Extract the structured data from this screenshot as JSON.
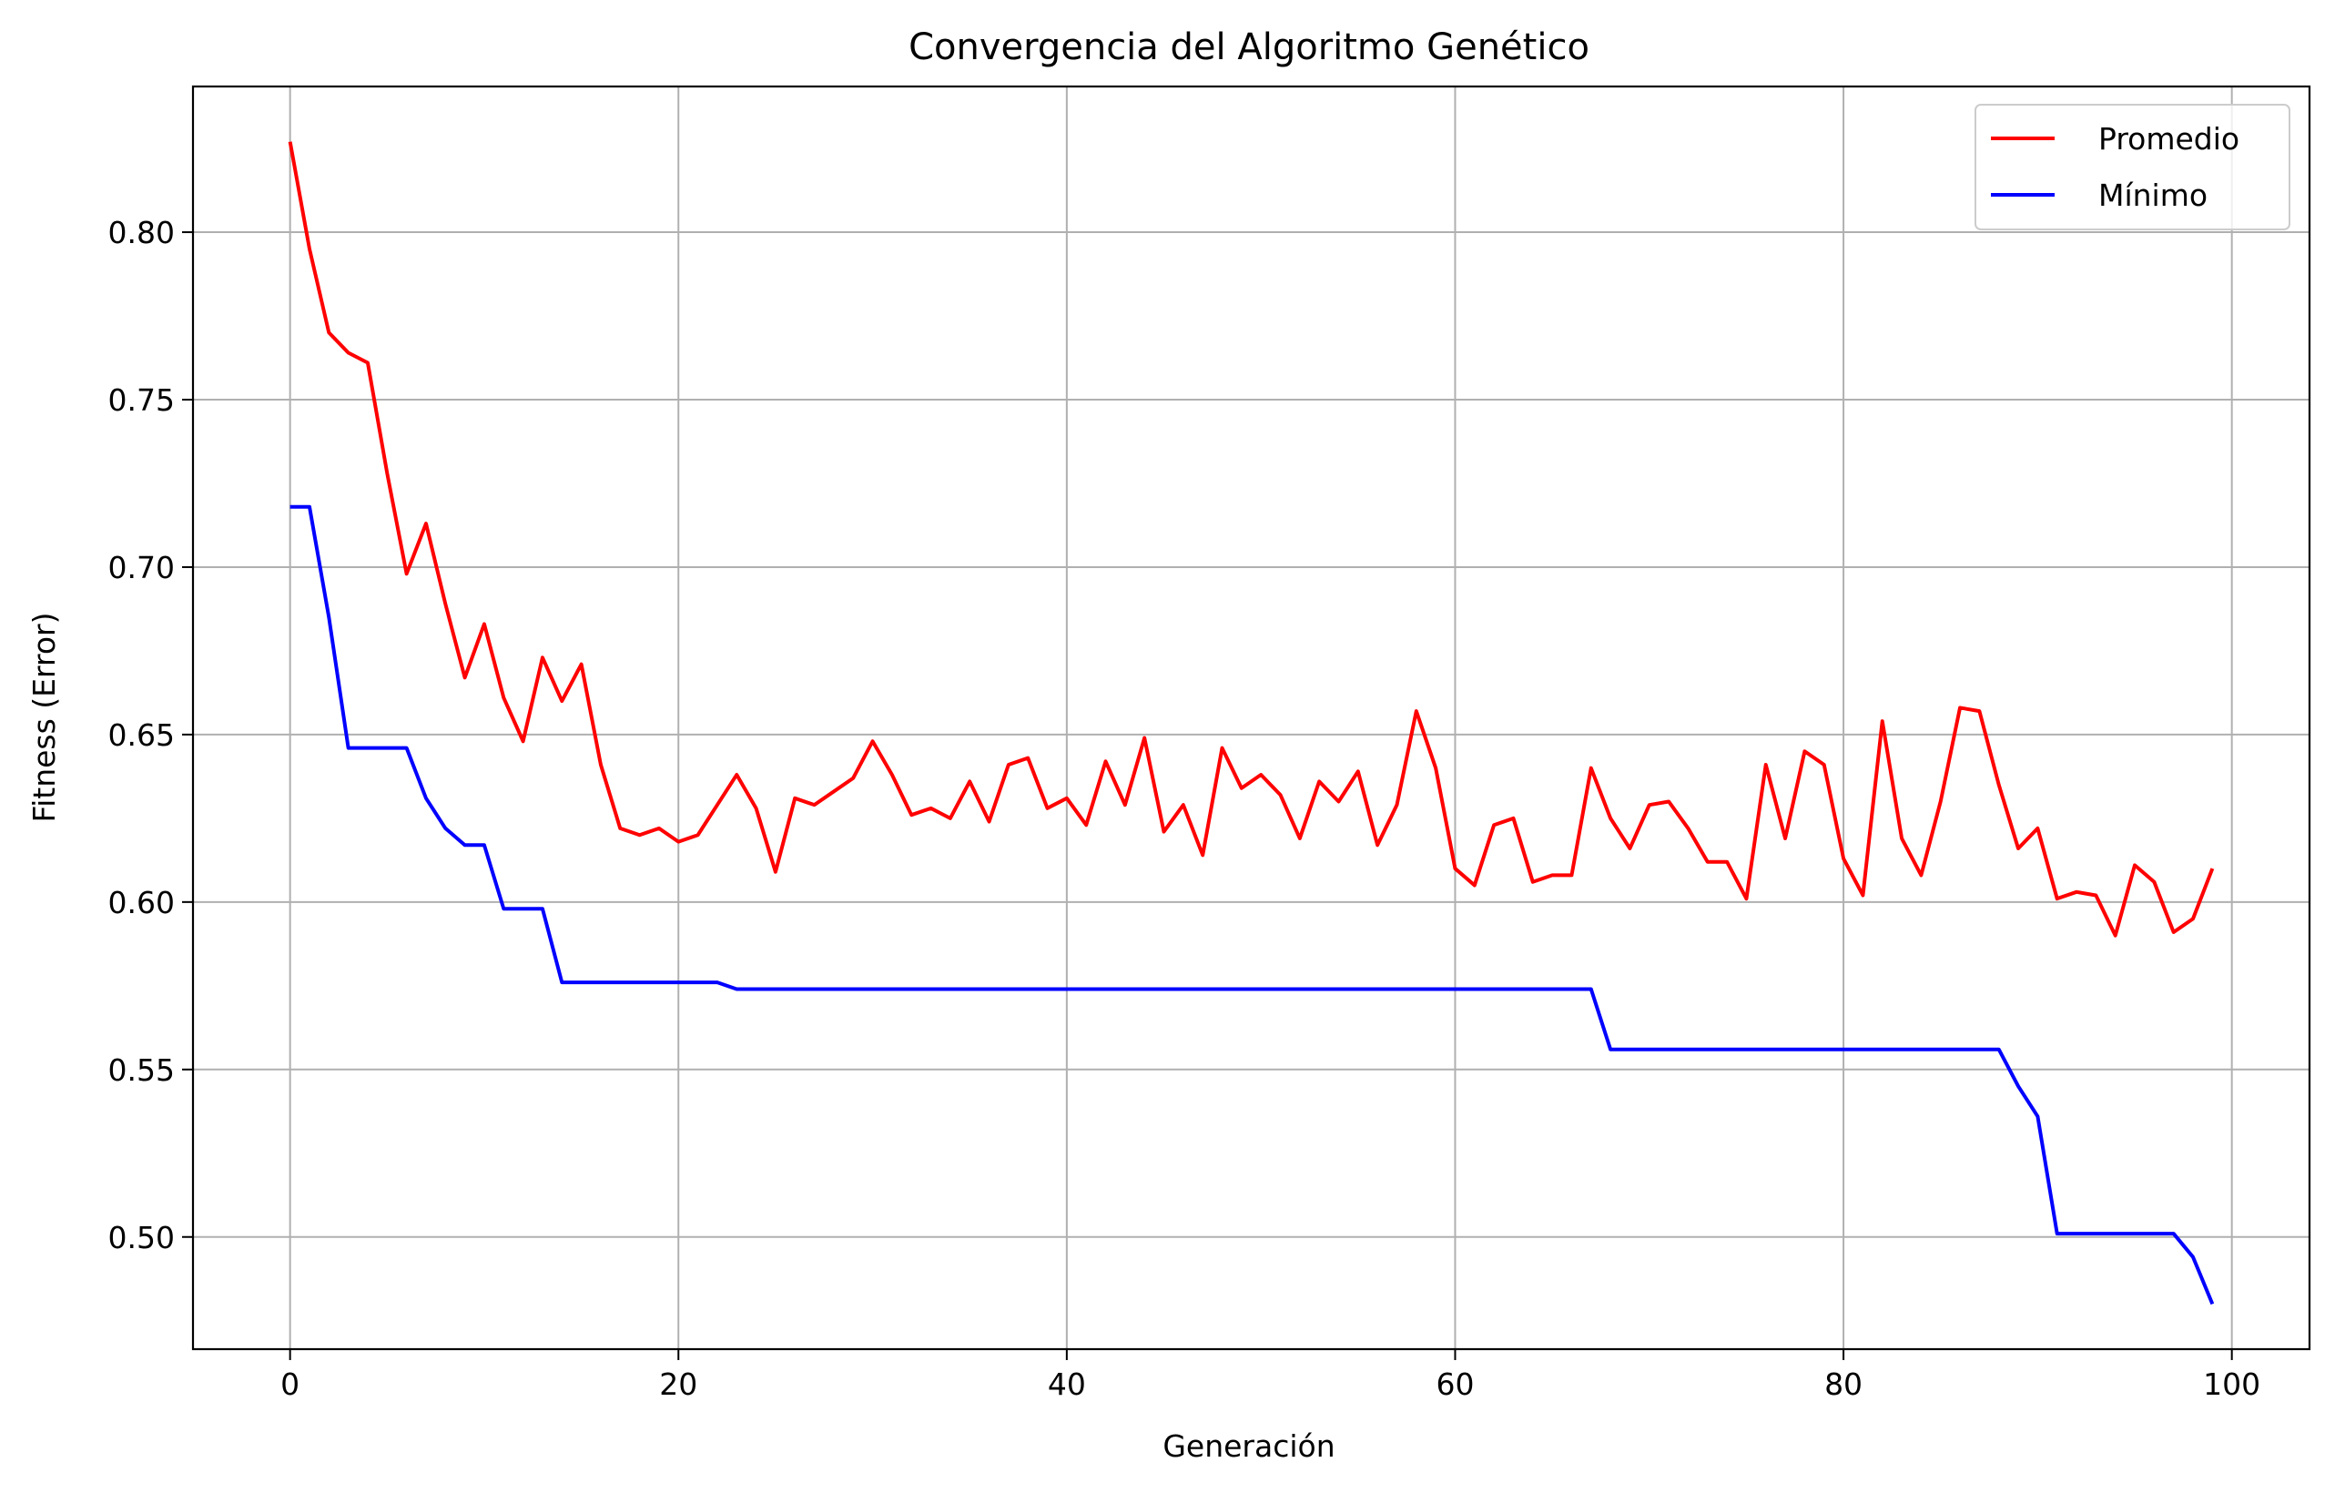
{
  "chart_data": {
    "type": "line",
    "title": "Convergencia del Algoritmo Genético",
    "xlabel": "Generación",
    "ylabel": "Fitness (Error)",
    "xlim": [
      -5,
      104
    ],
    "ylim": [
      0.4665,
      0.8435
    ],
    "xticks": [
      0,
      20,
      40,
      60,
      80,
      100
    ],
    "xtick_labels": [
      "0",
      "20",
      "40",
      "60",
      "80",
      "100"
    ],
    "yticks": [
      0.5,
      0.55,
      0.6,
      0.65,
      0.7,
      0.75,
      0.8
    ],
    "ytick_labels": [
      "0.50",
      "0.55",
      "0.60",
      "0.65",
      "0.70",
      "0.75",
      "0.80"
    ],
    "grid": true,
    "legend_position": "top-right",
    "series": [
      {
        "name": "Promedio",
        "color": "#ff0000",
        "values": [
          0.827,
          0.795,
          0.77,
          0.764,
          0.761,
          0.728,
          0.698,
          0.713,
          0.689,
          0.667,
          0.683,
          0.661,
          0.648,
          0.673,
          0.66,
          0.671,
          0.641,
          0.622,
          0.62,
          0.622,
          0.618,
          0.62,
          0.629,
          0.638,
          0.628,
          0.609,
          0.631,
          0.629,
          0.633,
          0.637,
          0.648,
          0.638,
          0.626,
          0.628,
          0.625,
          0.636,
          0.624,
          0.641,
          0.643,
          0.628,
          0.631,
          0.623,
          0.642,
          0.629,
          0.649,
          0.621,
          0.629,
          0.614,
          0.646,
          0.634,
          0.638,
          0.632,
          0.619,
          0.636,
          0.63,
          0.639,
          0.617,
          0.629,
          0.657,
          0.64,
          0.61,
          0.605,
          0.623,
          0.625,
          0.606,
          0.608,
          0.608,
          0.64,
          0.625,
          0.616,
          0.629,
          0.63,
          0.622,
          0.612,
          0.612,
          0.601,
          0.641,
          0.619,
          0.645,
          0.641,
          0.613,
          0.602,
          0.654,
          0.619,
          0.608,
          0.63,
          0.658,
          0.657,
          0.635,
          0.616,
          0.622,
          0.601,
          0.603,
          0.602,
          0.59,
          0.611,
          0.606,
          0.591,
          0.595,
          0.61
        ]
      },
      {
        "name": "Mínimo",
        "color": "#0000ff",
        "values": [
          0.718,
          0.718,
          0.685,
          0.646,
          0.646,
          0.646,
          0.646,
          0.631,
          0.622,
          0.617,
          0.617,
          0.598,
          0.598,
          0.598,
          0.576,
          0.576,
          0.576,
          0.576,
          0.576,
          0.576,
          0.576,
          0.576,
          0.576,
          0.574,
          0.574,
          0.574,
          0.574,
          0.574,
          0.574,
          0.574,
          0.574,
          0.574,
          0.574,
          0.574,
          0.574,
          0.574,
          0.574,
          0.574,
          0.574,
          0.574,
          0.574,
          0.574,
          0.574,
          0.574,
          0.574,
          0.574,
          0.574,
          0.574,
          0.574,
          0.574,
          0.574,
          0.574,
          0.574,
          0.574,
          0.574,
          0.574,
          0.574,
          0.574,
          0.574,
          0.574,
          0.574,
          0.574,
          0.574,
          0.574,
          0.574,
          0.574,
          0.574,
          0.574,
          0.556,
          0.556,
          0.556,
          0.556,
          0.556,
          0.556,
          0.556,
          0.556,
          0.556,
          0.556,
          0.556,
          0.556,
          0.556,
          0.556,
          0.556,
          0.556,
          0.556,
          0.556,
          0.556,
          0.556,
          0.556,
          0.545,
          0.536,
          0.501,
          0.501,
          0.501,
          0.501,
          0.501,
          0.501,
          0.501,
          0.494,
          0.48
        ]
      }
    ]
  }
}
